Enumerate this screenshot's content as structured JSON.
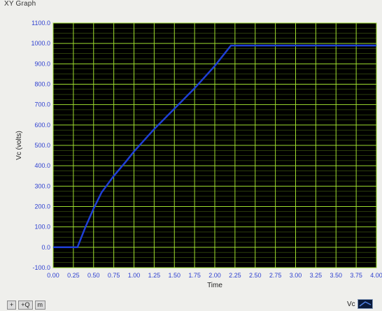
{
  "graph": {
    "title": "XY Graph"
  },
  "chart_data": {
    "type": "line",
    "title": "",
    "xlabel": "Time",
    "ylabel": "Vc (volts)",
    "xlim": [
      0,
      4
    ],
    "ylim": [
      -100,
      1100
    ],
    "grid": true,
    "x_ticks": [
      "0.00",
      "0.25",
      "0.50",
      "0.75",
      "1.00",
      "1.25",
      "1.50",
      "1.75",
      "2.00",
      "2.25",
      "2.50",
      "2.75",
      "3.00",
      "3.25",
      "3.50",
      "3.75",
      "4.00"
    ],
    "y_ticks": [
      "-100.0",
      "0.0",
      "100.0",
      "200.0",
      "300.0",
      "400.0",
      "500.0",
      "600.0",
      "700.0",
      "800.0",
      "900.0",
      "1000.0",
      "1100.0"
    ],
    "colors": {
      "plot_bg": "#000000",
      "grid": "#9ddd2e",
      "series": "#1f3fd6"
    },
    "series": [
      {
        "name": "Vc",
        "x": [
          0.0,
          0.3,
          0.4,
          0.5,
          0.6,
          0.75,
          0.9,
          1.0,
          1.25,
          1.5,
          1.75,
          2.0,
          2.2,
          2.5,
          3.0,
          3.5,
          4.0
        ],
        "y": [
          0,
          0,
          100,
          190,
          270,
          350,
          420,
          470,
          580,
          680,
          780,
          890,
          990,
          990,
          990,
          990,
          990
        ]
      }
    ]
  },
  "toolbar": {
    "buttons": [
      "+",
      "+Q",
      "m"
    ]
  },
  "legend": {
    "label": "Vc"
  }
}
